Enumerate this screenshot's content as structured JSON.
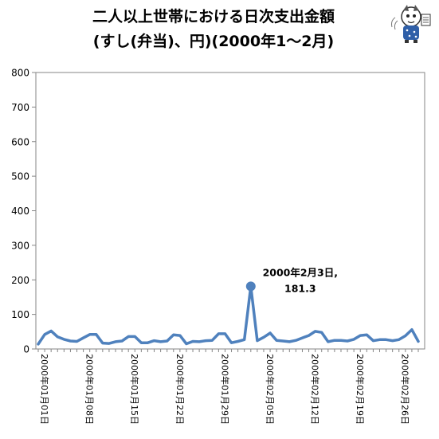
{
  "chart_data": {
    "type": "line",
    "title": "二人以上世帯における日次支出金額",
    "subtitle": "(すし(弁当)、円)(2000年1〜2月)",
    "xlabel": "",
    "ylabel": "",
    "ylim": [
      0,
      800
    ],
    "yticks": [
      "0",
      "100",
      "200",
      "300",
      "400",
      "500",
      "600",
      "700",
      "800"
    ],
    "grid": false,
    "legend": "none",
    "line_color": "#4f81bd",
    "x": [
      "2000-01-01",
      "2000-01-02",
      "2000-01-03",
      "2000-01-04",
      "2000-01-05",
      "2000-01-06",
      "2000-01-07",
      "2000-01-08",
      "2000-01-09",
      "2000-01-10",
      "2000-01-11",
      "2000-01-12",
      "2000-01-13",
      "2000-01-14",
      "2000-01-15",
      "2000-01-16",
      "2000-01-17",
      "2000-01-18",
      "2000-01-19",
      "2000-01-20",
      "2000-01-21",
      "2000-01-22",
      "2000-01-23",
      "2000-01-24",
      "2000-01-25",
      "2000-01-26",
      "2000-01-27",
      "2000-01-28",
      "2000-01-29",
      "2000-01-30",
      "2000-01-31",
      "2000-02-01",
      "2000-02-02",
      "2000-02-03",
      "2000-02-04",
      "2000-02-05",
      "2000-02-06",
      "2000-02-07",
      "2000-02-08",
      "2000-02-09",
      "2000-02-10",
      "2000-02-11",
      "2000-02-12",
      "2000-02-13",
      "2000-02-14",
      "2000-02-15",
      "2000-02-16",
      "2000-02-17",
      "2000-02-18",
      "2000-02-19",
      "2000-02-20",
      "2000-02-21",
      "2000-02-22",
      "2000-02-23",
      "2000-02-24",
      "2000-02-25",
      "2000-02-26",
      "2000-02-27",
      "2000-02-28",
      "2000-02-29"
    ],
    "x_tick_labels": [
      {
        "date": "2000-01-01",
        "label": "2000年01月01日"
      },
      {
        "date": "2000-01-08",
        "label": "2000年01月08日"
      },
      {
        "date": "2000-01-15",
        "label": "2000年01月15日"
      },
      {
        "date": "2000-01-22",
        "label": "2000年01月22日"
      },
      {
        "date": "2000-01-29",
        "label": "2000年01月29日"
      },
      {
        "date": "2000-02-05",
        "label": "2000年02月05日"
      },
      {
        "date": "2000-02-12",
        "label": "2000年02月12日"
      },
      {
        "date": "2000-02-19",
        "label": "2000年02月19日"
      },
      {
        "date": "2000-02-26",
        "label": "2000年02月26日"
      }
    ],
    "series": [
      {
        "values": [
          14,
          42,
          52,
          35,
          28,
          23,
          22,
          32,
          42,
          42,
          17,
          16,
          21,
          23,
          36,
          36,
          18,
          18,
          24,
          21,
          23,
          41,
          39,
          15,
          22,
          21,
          24,
          25,
          44,
          44,
          18,
          22,
          27,
          181.3,
          24,
          34,
          46,
          25,
          23,
          21,
          25,
          32,
          39,
          51,
          48,
          21,
          25,
          25,
          23,
          28,
          39,
          41,
          24,
          27,
          27,
          24,
          27,
          38,
          56,
          22
        ]
      }
    ],
    "annotation": {
      "date": "2000-02-03",
      "value": 181.3,
      "line1": "2000年2月3日,",
      "line2": "181.3"
    }
  }
}
